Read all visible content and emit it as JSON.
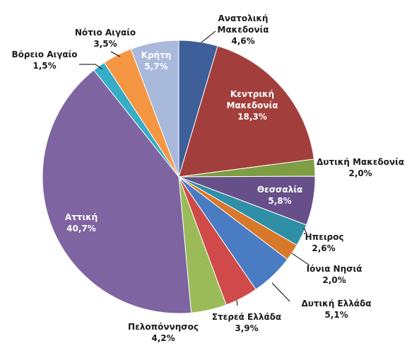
{
  "chart_data": {
    "type": "pie",
    "title": "",
    "slices": [
      {
        "label": "Ανατολική Μακεδονία",
        "value": 4.6,
        "display": "4,6%",
        "color": "#3e5f9a"
      },
      {
        "label": "Κεντρική Μακεδονία",
        "value": 18.3,
        "display": "18,3%",
        "color": "#a23f3c"
      },
      {
        "label": "Δυτική Μακεδονία",
        "value": 2.0,
        "display": "2,0%",
        "color": "#7f9d42"
      },
      {
        "label": "Θεσσαλία",
        "value": 5.8,
        "display": "5,8%",
        "color": "#67508a"
      },
      {
        "label": "Ήπειρος",
        "value": 2.6,
        "display": "2,6%",
        "color": "#2f8fa6"
      },
      {
        "label": "Ιόνια Νησιά",
        "value": 2.0,
        "display": "2,0%",
        "color": "#d8782a"
      },
      {
        "label": "Δυτική Ελλάδα",
        "value": 5.1,
        "display": "5,1%",
        "color": "#4a7cc3"
      },
      {
        "label": "Στερεά Ελλάδα",
        "value": 3.9,
        "display": "3,9%",
        "color": "#cf4a48"
      },
      {
        "label": "Πελοπόννησος",
        "value": 4.2,
        "display": "4,2%",
        "color": "#9bbb59"
      },
      {
        "label": "Αττική",
        "value": 40.7,
        "display": "40,7%",
        "color": "#7e64a0"
      },
      {
        "label": "Βόρειο Αιγαίο",
        "value": 1.5,
        "display": "1,5%",
        "color": "#36adc6"
      },
      {
        "label": "Νότιο Αιγαίο",
        "value": 3.5,
        "display": "3,5%",
        "color": "#f59643"
      },
      {
        "label": "Κρήτη",
        "value": 5.7,
        "display": "5,7%",
        "color": "#a8b9db"
      }
    ]
  }
}
